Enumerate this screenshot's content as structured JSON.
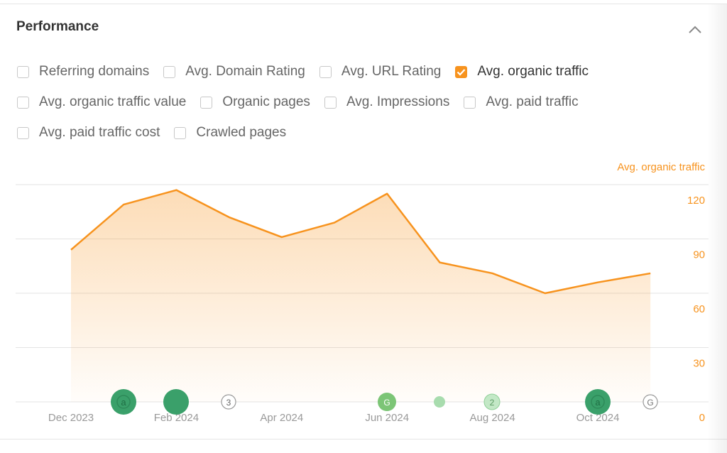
{
  "panel": {
    "title": "Performance",
    "option_rows": [
      [
        {
          "label": "Referring domains",
          "checked": false
        },
        {
          "label": "Avg. Domain Rating",
          "checked": false
        },
        {
          "label": "Avg. URL Rating",
          "checked": false
        },
        {
          "label": "Avg. organic traffic",
          "checked": true
        }
      ],
      [
        {
          "label": "Avg. organic traffic value",
          "checked": false
        },
        {
          "label": "Organic pages",
          "checked": false
        },
        {
          "label": "Avg. Impressions",
          "checked": false
        },
        {
          "label": "Avg. paid traffic",
          "checked": false
        }
      ],
      [
        {
          "label": "Avg. paid traffic cost",
          "checked": false
        },
        {
          "label": "Crawled pages",
          "checked": false
        }
      ]
    ]
  },
  "chart_data": {
    "type": "area",
    "categories": [
      "Dec 2023",
      null,
      "Feb 2024",
      null,
      "Apr 2024",
      null,
      "Jun 2024",
      null,
      "Aug 2024",
      null,
      "Oct 2024",
      null
    ],
    "series": [
      {
        "name": "Avg. organic traffic",
        "color": "#f7931e",
        "axis": "y2",
        "values": [
          84,
          109,
          117,
          102,
          91,
          99,
          115,
          77,
          71,
          60,
          66,
          71
        ]
      }
    ],
    "y2lim": [
      0,
      120
    ],
    "y2ticks": [
      0,
      30,
      60,
      90,
      120
    ],
    "grid": true,
    "event_labels": [
      "a",
      "3",
      "G",
      "2",
      "a",
      "G"
    ]
  }
}
